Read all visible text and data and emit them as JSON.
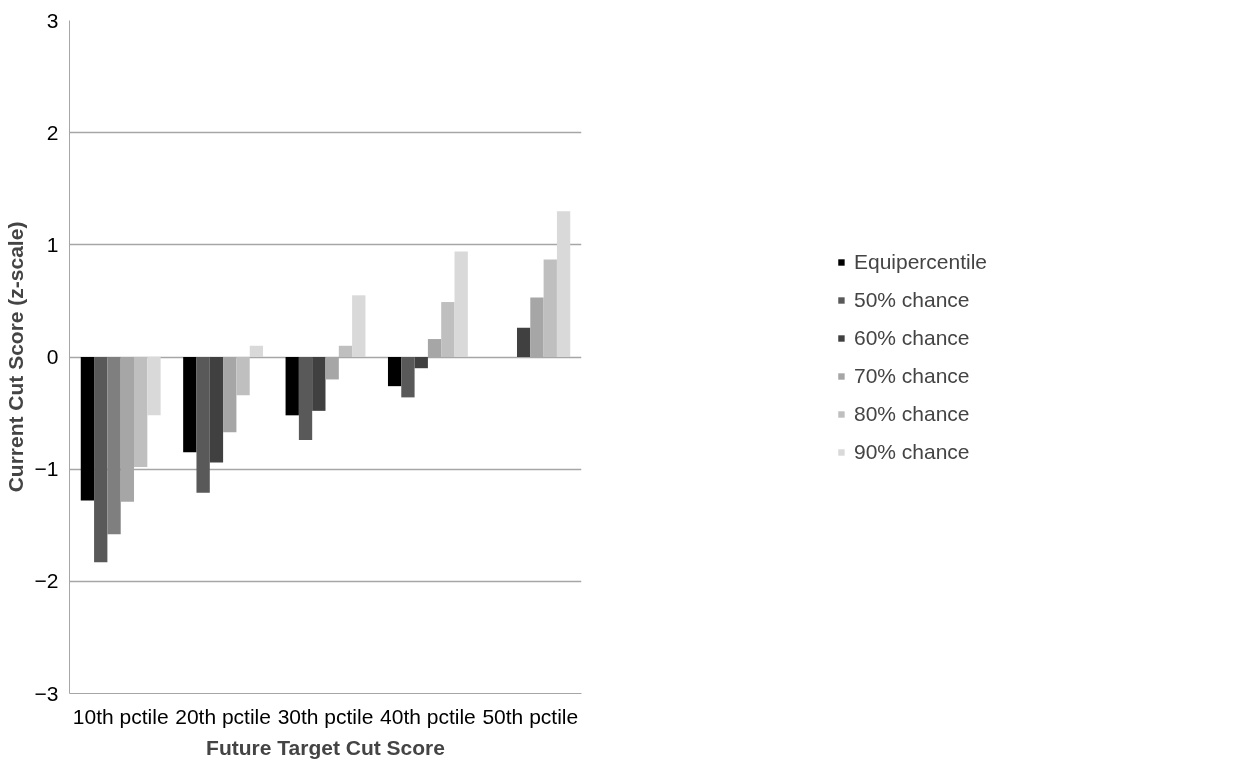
{
  "chart_data": {
    "type": "bar",
    "xlabel": "Future Target Cut Score",
    "ylabel": "Current Cut Score (z-scale)",
    "categories": [
      "10th pctile",
      "20th pctile",
      "30th pctile",
      "40th pctile",
      "50th pctile"
    ],
    "series": [
      {
        "name": "Equipercentile",
        "color": "#000000",
        "values": [
          -1.28,
          -0.85,
          -0.52,
          -0.26,
          null
        ]
      },
      {
        "name": "50% chance",
        "color": "#595959",
        "values": [
          -1.83,
          -1.21,
          -0.74,
          -0.36,
          null
        ]
      },
      {
        "name": "60% chance",
        "color": "#404040",
        "colors": [
          "#7f7f7f",
          "#404040",
          "#404040",
          "#404040",
          "#404040"
        ],
        "values": [
          -1.58,
          -0.94,
          -0.48,
          -0.1,
          0.26
        ]
      },
      {
        "name": "70% chance",
        "color": "#a6a6a6",
        "values": [
          -1.29,
          -0.67,
          -0.2,
          0.16,
          0.53
        ]
      },
      {
        "name": "80% chance",
        "color": "#bfbfbf",
        "values": [
          -0.98,
          -0.34,
          0.1,
          0.49,
          0.87
        ]
      },
      {
        "name": "90% chance",
        "color": "#d9d9d9",
        "values": [
          -0.52,
          0.1,
          0.55,
          0.94,
          1.3
        ]
      }
    ],
    "ylim": [
      -3,
      3
    ],
    "yticks": [
      -3,
      -2,
      -1,
      0,
      1,
      2,
      3
    ],
    "grid": "y",
    "legend": "right"
  }
}
